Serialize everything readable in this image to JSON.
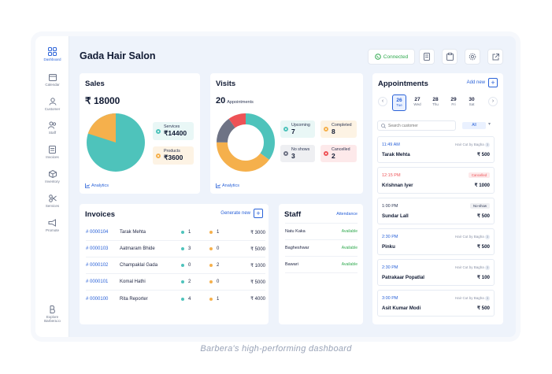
{
  "sidebar": {
    "items": [
      {
        "label": "Dashboard",
        "icon": "grid-icon",
        "active": true
      },
      {
        "label": "Calendar",
        "icon": "calendar-icon"
      },
      {
        "label": "Customer",
        "icon": "user-icon"
      },
      {
        "label": "Staff",
        "icon": "users-icon"
      },
      {
        "label": "Invoices",
        "icon": "invoice-icon"
      },
      {
        "label": "Inventory",
        "icon": "box-icon"
      },
      {
        "label": "Services",
        "icon": "scissors-icon"
      },
      {
        "label": "Promote",
        "icon": "megaphone-icon"
      }
    ],
    "explore_label": "Explore Barbera.io"
  },
  "header": {
    "title": "Gada Hair Salon",
    "connected_label": "Connected",
    "accent": "#2a62d8",
    "connected_color": "#2fa94e"
  },
  "sales": {
    "title": "Sales",
    "total": "₹ 18000",
    "services_label": "Services",
    "services_value": "₹14400",
    "products_label": "Products",
    "products_value": "₹3600",
    "analytics_label": "Analytics"
  },
  "visits": {
    "title": "Visits",
    "count": "20",
    "count_label": "Appointments",
    "upcoming_label": "Upcoming",
    "upcoming_value": "7",
    "completed_label": "Completed",
    "completed_value": "8",
    "noshows_label": "No shows",
    "noshows_value": "3",
    "cancelled_label": "Cancelled",
    "cancelled_value": "2",
    "analytics_label": "Analytics"
  },
  "invoices": {
    "title": "Invoices",
    "generate_label": "Generate new",
    "rows": [
      {
        "id": "# 0000104",
        "name": "Tarak Mehta",
        "a": "1",
        "b": "1",
        "amount": "₹ 3000"
      },
      {
        "id": "# 0000103",
        "name": "Aatmaram Bhide",
        "a": "3",
        "b": "0",
        "amount": "₹ 5000"
      },
      {
        "id": "# 0000102",
        "name": "Champaklal Gada",
        "a": "0",
        "b": "2",
        "amount": "₹ 1000"
      },
      {
        "id": "# 0000101",
        "name": "Komal Hathi",
        "a": "2",
        "b": "0",
        "amount": "₹ 5000"
      },
      {
        "id": "# 0000100",
        "name": "Rita Reporter",
        "a": "4",
        "b": "1",
        "amount": "₹ 4000"
      }
    ]
  },
  "staff": {
    "title": "Staff",
    "attendance_label": "Attendance",
    "rows": [
      {
        "name": "Natu Kaka",
        "status": "Available"
      },
      {
        "name": "Bagheshwar",
        "status": "Available"
      },
      {
        "name": "Bawari",
        "status": "Available"
      }
    ]
  },
  "appointments": {
    "title": "Appointments",
    "add_label": "Add new",
    "search_placeholder": "Search customer",
    "filter_value": "All",
    "days": [
      {
        "n": "26",
        "w": "Tue",
        "selected": true
      },
      {
        "n": "27",
        "w": "Wed"
      },
      {
        "n": "28",
        "w": "Thu"
      },
      {
        "n": "29",
        "w": "Fri"
      },
      {
        "n": "30",
        "w": "Sat"
      }
    ],
    "items": [
      {
        "time": "11:49 AM",
        "service": "Hair Cut by Bagha",
        "badge": "3",
        "name": "Tarak Mehta",
        "price": "₹ 500"
      },
      {
        "time": "12:15 PM",
        "tag": "Cancelled",
        "name": "Krishnan Iyer",
        "price": "₹ 1000"
      },
      {
        "time": "1:00 PM",
        "tag": "No-show",
        "name": "Sundar Lall",
        "price": "₹ 500"
      },
      {
        "time": "2:30 PM",
        "service": "Hair Cut by Bagha",
        "badge": "3",
        "name": "Pinku",
        "price": "₹ 500"
      },
      {
        "time": "2:30 PM",
        "service": "Hair Cut by Bagha",
        "badge": "3",
        "name": "Patrakaar Popatlal",
        "price": "₹ 100"
      },
      {
        "time": "3:00 PM",
        "service": "Hair Cut by Bagha",
        "badge": "3",
        "name": "Asit Kumar Modi",
        "price": "₹ 500"
      }
    ]
  },
  "caption": "Barbera's high-performing dashboard"
}
